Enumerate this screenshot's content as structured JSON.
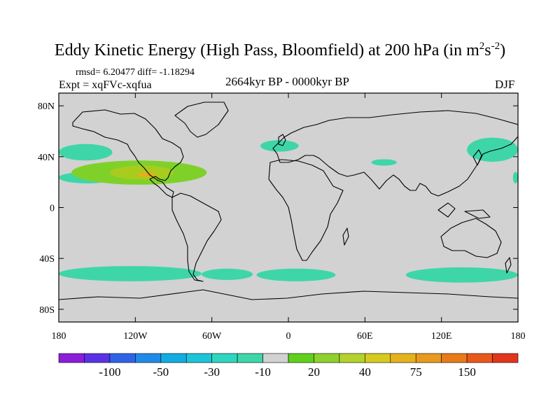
{
  "title": {
    "main": "Eddy Kinetic Energy (High Pass, Bloomfield) at 200 hPa (in m",
    "sup1": "2",
    "mid": "s",
    "sup2": "-2",
    "close": ")"
  },
  "stats": "rmsd= 6.20477 diff= -1.18294",
  "experiment": "Expt = xqFVc-xqfua",
  "period": "2664kyr BP - 0000kyr BP",
  "season": "DJF",
  "map": {
    "lon_range": [
      -180,
      180
    ],
    "lat_range": [
      -90,
      90
    ],
    "lat_ticks": [
      {
        "value": 80,
        "label": "80N"
      },
      {
        "value": 40,
        "label": "40N"
      },
      {
        "value": 0,
        "label": "0"
      },
      {
        "value": -40,
        "label": "40S"
      },
      {
        "value": -80,
        "label": "80S"
      }
    ],
    "lon_ticks": [
      {
        "value": -180,
        "label": "180"
      },
      {
        "value": -120,
        "label": "120W"
      },
      {
        "value": -60,
        "label": "60W"
      },
      {
        "value": 0,
        "label": "0"
      },
      {
        "value": 60,
        "label": "60E"
      },
      {
        "value": 120,
        "label": "120E"
      },
      {
        "value": 180,
        "label": "180"
      }
    ],
    "background_color": "#d2d2d2",
    "anomaly_regions": [
      {
        "name": "north-pacific-west-band",
        "value": -10,
        "color": "#3ed6a8",
        "lon": [
          -180,
          -138
        ],
        "lat": [
          37,
          50
        ]
      },
      {
        "name": "east-pacific-band",
        "value": -10,
        "color": "#3ed6a8",
        "lon": [
          -180,
          -135
        ],
        "lat": [
          19,
          28
        ]
      },
      {
        "name": "southern-ocean-pacific",
        "value": -10,
        "color": "#3ed6a8",
        "lon": [
          -180,
          -68
        ],
        "lat": [
          -58,
          -46
        ]
      },
      {
        "name": "southern-ocean-atlantic",
        "value": -10,
        "color": "#3ed6a8",
        "lon": [
          -68,
          -28
        ],
        "lat": [
          -57,
          -48
        ]
      },
      {
        "name": "southern-ocean-south-atlantic",
        "value": -10,
        "color": "#3ed6a8",
        "lon": [
          -25,
          37
        ],
        "lat": [
          -58,
          -48
        ]
      },
      {
        "name": "southern-ocean-indian",
        "value": -10,
        "color": "#3ed6a8",
        "lon": [
          92,
          180
        ],
        "lat": [
          -59,
          -47
        ]
      },
      {
        "name": "north-atlantic-patch",
        "value": -10,
        "color": "#3ed6a8",
        "lon": [
          -22,
          8
        ],
        "lat": [
          44,
          53
        ]
      },
      {
        "name": "central-asia-patch",
        "value": -10,
        "color": "#3ed6a8",
        "lon": [
          65,
          85
        ],
        "lat": [
          33,
          38
        ]
      },
      {
        "name": "north-pacific-east-band",
        "value": -10,
        "color": "#3ed6a8",
        "lon": [
          140,
          180
        ],
        "lat": [
          36,
          55
        ]
      },
      {
        "name": "east-pacific-edge",
        "value": -10,
        "color": "#3ed6a8",
        "lon": [
          176,
          180
        ],
        "lat": [
          19,
          28
        ]
      },
      {
        "name": "subtropical-jet-band",
        "value": 20,
        "color": "#7fd12a",
        "lon": [
          -170,
          -64
        ],
        "lat": [
          18,
          37
        ]
      },
      {
        "name": "subtropical-jet-core",
        "value": 30,
        "color": "#a8cc1e",
        "lon": [
          -140,
          -90
        ],
        "lat": [
          22,
          33
        ]
      },
      {
        "name": "subtropical-jet-max",
        "value": 50,
        "color": "#e1b01c",
        "lon": [
          -118,
          -104
        ],
        "lat": [
          24,
          28
        ]
      }
    ]
  },
  "colorbar": {
    "colors": [
      "#8c1ddb",
      "#5a32e6",
      "#2f64e8",
      "#1f8be6",
      "#12ace0",
      "#1cc4d8",
      "#2fd6bf",
      "#3ed6a8",
      "#d2d2d2",
      "#5fd11c",
      "#8fd12c",
      "#b3d22d",
      "#d6ca1e",
      "#e6b21c",
      "#e89a1f",
      "#e87a1a",
      "#e8581b",
      "#e1351c"
    ],
    "labels": [
      {
        "text": "-100",
        "index": 2
      },
      {
        "text": "-50",
        "index": 4
      },
      {
        "text": "-30",
        "index": 6
      },
      {
        "text": "-10",
        "index": 8
      },
      {
        "text": "20",
        "index": 10
      },
      {
        "text": "40",
        "index": 12
      },
      {
        "text": "75",
        "index": 14
      },
      {
        "text": "150",
        "index": 16
      }
    ]
  }
}
